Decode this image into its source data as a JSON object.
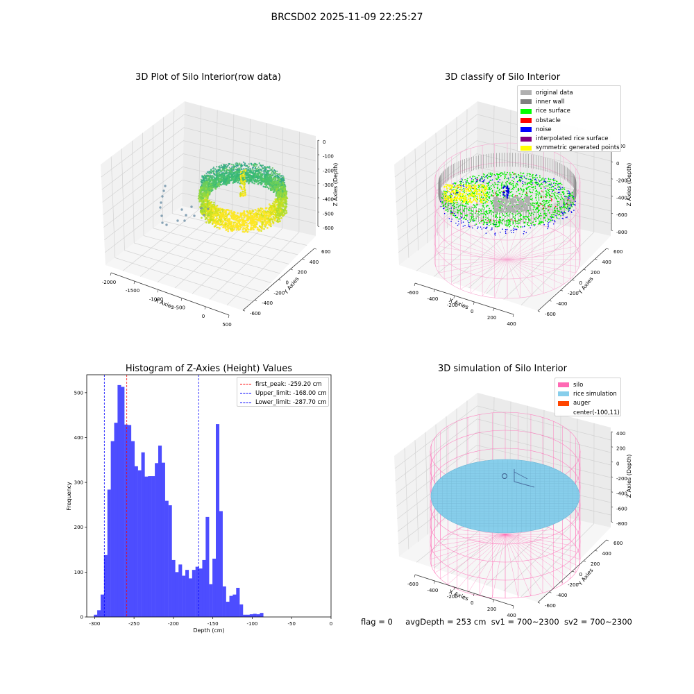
{
  "suptitle": "BRCSD02 2025-11-09 22:25:27",
  "panel_raw": {
    "title": "3D Plot of Silo Interior(row data)",
    "xlabel": "X Axies",
    "ylabel": "Y Axies",
    "zlabel": "Z Axies (Depth)",
    "xticks": [
      "-2000",
      "-1500",
      "-1000",
      "-500",
      "0",
      "500"
    ],
    "yticks": [
      "-600",
      "-400",
      "-200",
      "0",
      "200",
      "400",
      "600"
    ],
    "zticks": [
      "0",
      "-100",
      "-200",
      "-300",
      "-400",
      "-500",
      "-600"
    ],
    "colormap": "viridis"
  },
  "panel_classify": {
    "title": "3D classify of Silo Interior",
    "xlabel": "X Axies",
    "ylabel": "Y Axies",
    "zlabel": "Z Axies (Depth)",
    "xticks": [
      "-600",
      "-400",
      "-200",
      "0",
      "200",
      "400"
    ],
    "yticks": [
      "-600",
      "-400",
      "-200",
      "0",
      "200",
      "400",
      "600"
    ],
    "zticks": [
      "200",
      "0",
      "-200",
      "-400",
      "-600",
      "-800"
    ],
    "legend": [
      {
        "label": "original data",
        "color": "#b0b0b0"
      },
      {
        "label": "inner wall",
        "color": "#808080"
      },
      {
        "label": "rice surface",
        "color": "#00ff00"
      },
      {
        "label": "obstacle",
        "color": "#ff0000"
      },
      {
        "label": "noise",
        "color": "#0000ff"
      },
      {
        "label": "interpolated rice surface",
        "color": "#800080"
      },
      {
        "label": "symmetric generated points",
        "color": "#ffff00"
      }
    ]
  },
  "panel_hist": {
    "title": "Histogram of Z-Axies (Height) Values",
    "xlabel": "Depth (cm)",
    "ylabel": "Frequency",
    "legend": [
      {
        "label": "first_peak: -259.20 cm",
        "color": "#ff0000"
      },
      {
        "label": "Upper_limit: -168.00 cm",
        "color": "#0000ff"
      },
      {
        "label": "Lower_limit: -287.70 cm",
        "color": "#0000ff"
      }
    ]
  },
  "panel_sim": {
    "title": "3D simulation of Silo Interior",
    "xlabel": "X Axies",
    "ylabel": "Y Axies",
    "zlabel": "Z Axies (Depth)",
    "xticks": [
      "-600",
      "-400",
      "-200",
      "0",
      "200",
      "400"
    ],
    "yticks": [
      "-600",
      "-400",
      "-200",
      "0",
      "200",
      "400",
      "600"
    ],
    "zticks": [
      "400",
      "200",
      "0",
      "-200",
      "-400",
      "-600",
      "-800"
    ],
    "legend": [
      {
        "label": "silo",
        "color": "#ff69b4"
      },
      {
        "label": "rice simulation",
        "color": "#87ceeb"
      },
      {
        "label": "auger",
        "color": "#ff4500"
      },
      {
        "label": "center(-100,11)",
        "color": ""
      }
    ]
  },
  "status": {
    "flag": "flag = 0",
    "avg_depth": "avgDepth = 253 cm",
    "sv1": "sv1 = 700~2300",
    "sv2": "sv2 = 700~2300"
  },
  "chart_data": [
    {
      "type": "scatter",
      "title": "3D Plot of Silo Interior(row data)",
      "xlabel": "X Axies",
      "ylabel": "Y Axies",
      "zlabel": "Z Axies (Depth)",
      "xlim": [
        -2200,
        550
      ],
      "ylim": [
        -650,
        650
      ],
      "zlim": [
        -650,
        20
      ],
      "grid": true
    },
    {
      "type": "scatter",
      "title": "3D classify of Silo Interior",
      "xlabel": "X Axies",
      "ylabel": "Y Axies",
      "zlabel": "Z Axies (Depth)",
      "series": [
        {
          "name": "original data"
        },
        {
          "name": "inner wall"
        },
        {
          "name": "rice surface"
        },
        {
          "name": "obstacle"
        },
        {
          "name": "noise"
        },
        {
          "name": "interpolated rice surface"
        },
        {
          "name": "symmetric generated points"
        }
      ],
      "legend": "top-right",
      "grid": true
    },
    {
      "type": "bar",
      "title": "Histogram of Z-Axies (Height) Values",
      "xlabel": "Depth (cm)",
      "ylabel": "Frequency",
      "xlim": [
        -310,
        0
      ],
      "ylim": [
        0,
        540
      ],
      "xticks": [
        -300,
        -250,
        -200,
        -150,
        -100,
        -50,
        0
      ],
      "yticks": [
        0,
        100,
        200,
        300,
        400,
        500
      ],
      "bin_width": 4.3,
      "bin_start": -301,
      "counts": [
        5,
        15,
        50,
        138,
        284,
        392,
        433,
        517,
        513,
        429,
        428,
        392,
        336,
        327,
        367,
        313,
        314,
        314,
        343,
        382,
        344,
        259,
        249,
        127,
        100,
        117,
        92,
        105,
        86,
        105,
        112,
        108,
        127,
        223,
        73,
        130,
        430,
        236,
        68,
        34,
        47,
        50,
        65,
        28,
        5,
        5,
        6,
        7,
        6,
        9
      ],
      "vlines": [
        {
          "name": "first_peak: -259.20 cm",
          "x": -259.2,
          "color": "#ff0000"
        },
        {
          "name": "Upper_limit: -168.00 cm",
          "x": -168.0,
          "color": "#0000ff"
        },
        {
          "name": "Lower_limit: -287.70 cm",
          "x": -287.7,
          "color": "#0000ff"
        }
      ],
      "legend": "top-right"
    },
    {
      "type": "scatter",
      "title": "3D simulation of Silo Interior",
      "xlabel": "X Axies",
      "ylabel": "Y Axies",
      "zlabel": "Z Axies (Depth)",
      "series": [
        {
          "name": "silo"
        },
        {
          "name": "rice simulation"
        },
        {
          "name": "auger"
        },
        {
          "name": "center(-100,11)"
        }
      ],
      "legend": "top-right",
      "grid": true
    }
  ]
}
